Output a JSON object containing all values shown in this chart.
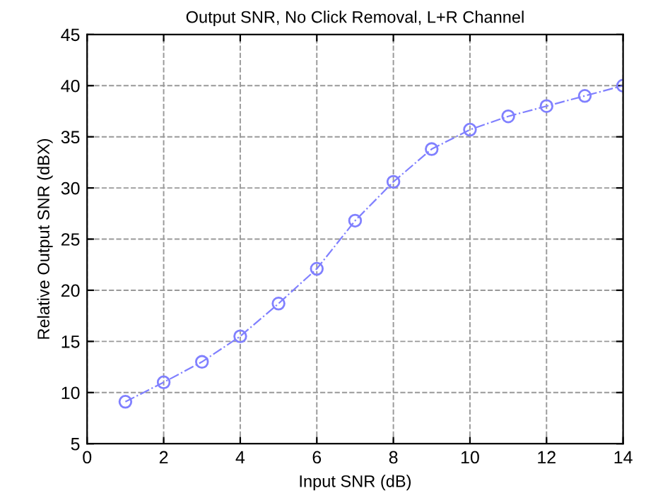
{
  "chart_data": {
    "type": "line",
    "title": "Output SNR, No Click Removal, L+R Channel",
    "xlabel": "Input SNR (dB)",
    "ylabel": "Relative Output SNR (dBX)",
    "x": [
      1,
      2,
      3,
      4,
      5,
      6,
      7,
      8,
      9,
      10,
      11,
      12,
      13,
      14
    ],
    "series": [
      {
        "color": "#8080ff",
        "values": [
          9.1,
          11,
          13,
          15.5,
          18.7,
          22.1,
          26.8,
          30.6,
          33.8,
          35.7,
          37,
          38,
          39,
          40
        ]
      }
    ],
    "xlim": [
      0,
      14
    ],
    "xticks": [
      0,
      2,
      4,
      6,
      8,
      10,
      12,
      14
    ],
    "ylim": [
      5,
      45
    ],
    "yticks": [
      5,
      10,
      15,
      20,
      25,
      30,
      35,
      40,
      45
    ],
    "grid": true,
    "marker": "circle",
    "line_style": "dashed"
  }
}
